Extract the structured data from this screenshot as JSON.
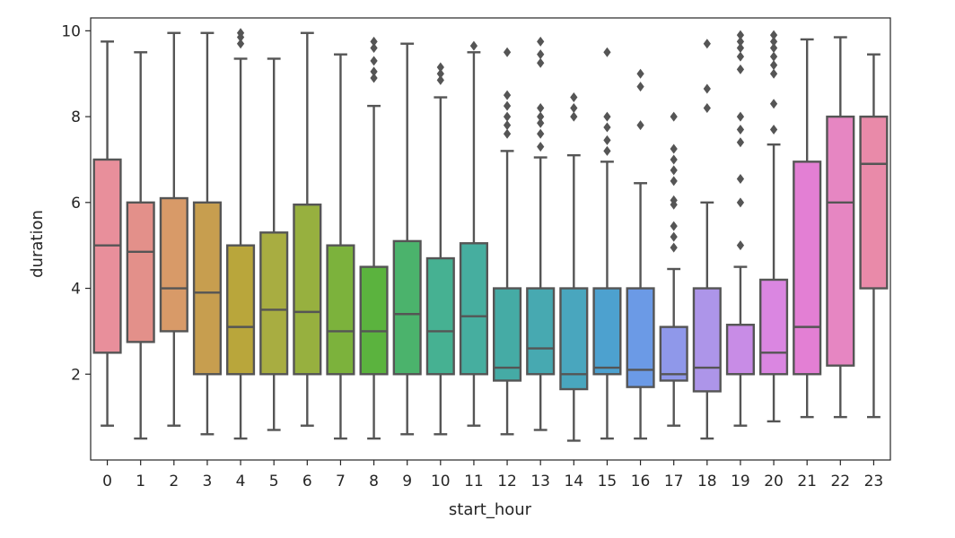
{
  "chart_data": {
    "type": "box",
    "xlabel": "start_hour",
    "ylabel": "duration",
    "ylim": [
      0.0,
      10.3
    ],
    "yticks": [
      2,
      4,
      6,
      8,
      10
    ],
    "categories": [
      "0",
      "1",
      "2",
      "3",
      "4",
      "5",
      "6",
      "7",
      "8",
      "9",
      "10",
      "11",
      "12",
      "13",
      "14",
      "15",
      "16",
      "17",
      "18",
      "19",
      "20",
      "21",
      "22",
      "23"
    ],
    "colors": [
      "#e88f9b",
      "#e3908a",
      "#d89a68",
      "#c79e4f",
      "#b9a63b",
      "#a8ad41",
      "#97b03f",
      "#7cb23c",
      "#5bb33e",
      "#4bb36c",
      "#46b192",
      "#46ae9f",
      "#45aba5",
      "#47a9b1",
      "#49a6be",
      "#4da1cf",
      "#6b9ae6",
      "#8f98ea",
      "#ad95e9",
      "#c88ce6",
      "#da86e1",
      "#e37fd4",
      "#e686c2",
      "#e98aa9"
    ],
    "boxes": [
      {
        "q1": 2.5,
        "median": 5.0,
        "q3": 7.0,
        "whisker_low": 0.8,
        "whisker_high": 9.75,
        "outliers": []
      },
      {
        "q1": 2.75,
        "median": 4.85,
        "q3": 6.0,
        "whisker_low": 0.5,
        "whisker_high": 9.5,
        "outliers": []
      },
      {
        "q1": 3.0,
        "median": 4.0,
        "q3": 6.1,
        "whisker_low": 0.8,
        "whisker_high": 9.95,
        "outliers": []
      },
      {
        "q1": 2.0,
        "median": 3.9,
        "q3": 6.0,
        "whisker_low": 0.6,
        "whisker_high": 9.95,
        "outliers": []
      },
      {
        "q1": 2.0,
        "median": 3.1,
        "q3": 5.0,
        "whisker_low": 0.5,
        "whisker_high": 9.35,
        "outliers": [
          9.7,
          9.85,
          9.95
        ]
      },
      {
        "q1": 2.0,
        "median": 3.5,
        "q3": 5.3,
        "whisker_low": 0.7,
        "whisker_high": 9.35,
        "outliers": []
      },
      {
        "q1": 2.0,
        "median": 3.45,
        "q3": 5.95,
        "whisker_low": 0.8,
        "whisker_high": 9.95,
        "outliers": []
      },
      {
        "q1": 2.0,
        "median": 3.0,
        "q3": 5.0,
        "whisker_low": 0.5,
        "whisker_high": 9.45,
        "outliers": []
      },
      {
        "q1": 2.0,
        "median": 3.0,
        "q3": 4.5,
        "whisker_low": 0.5,
        "whisker_high": 8.25,
        "outliers": [
          8.9,
          9.05,
          9.3,
          9.6,
          9.75
        ]
      },
      {
        "q1": 2.0,
        "median": 3.4,
        "q3": 5.1,
        "whisker_low": 0.6,
        "whisker_high": 9.7,
        "outliers": []
      },
      {
        "q1": 2.0,
        "median": 3.0,
        "q3": 4.7,
        "whisker_low": 0.6,
        "whisker_high": 8.45,
        "outliers": [
          8.85,
          9.0,
          9.15
        ]
      },
      {
        "q1": 2.0,
        "median": 3.35,
        "q3": 5.05,
        "whisker_low": 0.8,
        "whisker_high": 9.5,
        "outliers": [
          9.65
        ]
      },
      {
        "q1": 1.85,
        "median": 2.15,
        "q3": 4.0,
        "whisker_low": 0.6,
        "whisker_high": 7.2,
        "outliers": [
          7.6,
          7.8,
          8.0,
          8.25,
          8.5,
          9.5
        ]
      },
      {
        "q1": 2.0,
        "median": 2.6,
        "q3": 4.0,
        "whisker_low": 0.7,
        "whisker_high": 7.05,
        "outliers": [
          7.3,
          7.6,
          7.85,
          8.0,
          8.2,
          9.25,
          9.45,
          9.75
        ]
      },
      {
        "q1": 1.65,
        "median": 2.0,
        "q3": 4.0,
        "whisker_low": 0.45,
        "whisker_high": 7.1,
        "outliers": [
          8.0,
          8.2,
          8.45
        ]
      },
      {
        "q1": 2.0,
        "median": 2.15,
        "q3": 4.0,
        "whisker_low": 0.5,
        "whisker_high": 6.95,
        "outliers": [
          7.2,
          7.45,
          7.75,
          8.0,
          9.5
        ]
      },
      {
        "q1": 1.7,
        "median": 2.1,
        "q3": 4.0,
        "whisker_low": 0.5,
        "whisker_high": 6.45,
        "outliers": [
          7.8,
          8.7,
          9.0
        ]
      },
      {
        "q1": 1.85,
        "median": 2.0,
        "q3": 3.1,
        "whisker_low": 0.8,
        "whisker_high": 4.45,
        "outliers": [
          4.95,
          5.2,
          5.45,
          5.95,
          6.05,
          6.5,
          6.75,
          7.0,
          7.25,
          8.0
        ]
      },
      {
        "q1": 1.6,
        "median": 2.15,
        "q3": 4.0,
        "whisker_low": 0.5,
        "whisker_high": 6.0,
        "outliers": [
          8.2,
          8.65,
          9.7
        ]
      },
      {
        "q1": 2.0,
        "median": 2.0,
        "q3": 3.15,
        "whisker_low": 0.8,
        "whisker_high": 4.5,
        "outliers": [
          5.0,
          6.0,
          6.55,
          7.4,
          7.7,
          8.0,
          9.1,
          9.4,
          9.6,
          9.75,
          9.9
        ]
      },
      {
        "q1": 2.0,
        "median": 2.5,
        "q3": 4.2,
        "whisker_low": 0.9,
        "whisker_high": 7.35,
        "outliers": [
          7.7,
          8.3,
          9.0,
          9.2,
          9.4,
          9.6,
          9.75,
          9.9
        ]
      },
      {
        "q1": 2.0,
        "median": 3.1,
        "q3": 6.95,
        "whisker_low": 1.0,
        "whisker_high": 9.8,
        "outliers": []
      },
      {
        "q1": 2.2,
        "median": 6.0,
        "q3": 8.0,
        "whisker_low": 1.0,
        "whisker_high": 9.85,
        "outliers": []
      },
      {
        "q1": 4.0,
        "median": 6.9,
        "q3": 8.0,
        "whisker_low": 1.0,
        "whisker_high": 9.45,
        "outliers": []
      }
    ],
    "grid": false,
    "legend": "none"
  }
}
